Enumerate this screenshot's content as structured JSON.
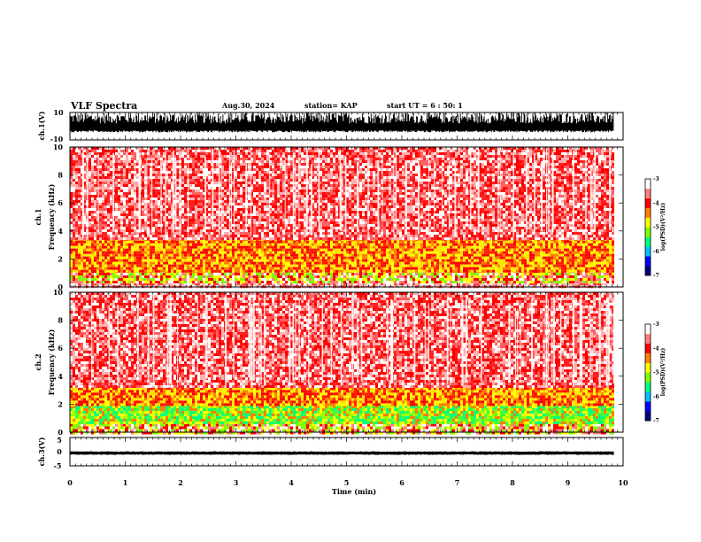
{
  "header": {
    "title": "VLF Spectra",
    "date": "Aug.30, 2024",
    "station": "station= KAP",
    "start": "start UT = 6 : 50: 1"
  },
  "chart_data": [
    {
      "type": "line",
      "ylabel": "ch.1(V)",
      "ylim": [
        -10,
        10
      ],
      "yticks": [
        "10",
        "-10"
      ],
      "xlim": [
        0,
        10
      ],
      "description": "waveform, dense noise mostly between -3 and 9 V"
    },
    {
      "type": "heatmap",
      "ylabel": "ch.1\nFrequency (kHz)",
      "xlim": [
        0,
        10
      ],
      "ylim": [
        0,
        10
      ],
      "yticks": [
        "0",
        "2",
        "4",
        "6",
        "8",
        "10"
      ],
      "x_data_end": 9.83,
      "colorbar": {
        "label": "log(PSD)(V²/Hz)",
        "range": [
          -7,
          -3
        ],
        "ticks": [
          "-3",
          "-4",
          "-5",
          "-6",
          "-7"
        ],
        "colors": [
          "#000080",
          "#0000ff",
          "#00c0ff",
          "#00ff80",
          "#80ff00",
          "#ffff00",
          "#ff8000",
          "#ff0000",
          "#ff8080",
          "#ffffff"
        ]
      },
      "bands": [
        {
          "from": 0.0,
          "to": 0.3,
          "level": "low"
        },
        {
          "from": 0.3,
          "to": 1.2,
          "level": "mixed"
        },
        {
          "from": 1.2,
          "to": 3.5,
          "level": "yellow-red"
        },
        {
          "from": 3.5,
          "to": 10.0,
          "level": "red-speckle"
        }
      ]
    },
    {
      "type": "heatmap",
      "ylabel": "ch.2\nFrequency (kHz)",
      "xlim": [
        0,
        10
      ],
      "ylim": [
        0,
        10
      ],
      "yticks": [
        "0",
        "2",
        "4",
        "6",
        "8",
        "10"
      ],
      "x_data_end": 9.83,
      "colorbar": {
        "label": "log(PSD)(V²/Hz)",
        "range": [
          -7,
          -3
        ],
        "ticks": [
          "-3",
          "-4",
          "-5",
          "-6",
          "-7"
        ],
        "colors": [
          "#000080",
          "#0000ff",
          "#00c0ff",
          "#00ff80",
          "#80ff00",
          "#ffff00",
          "#ff8000",
          "#ff0000",
          "#ff8080",
          "#ffffff"
        ]
      },
      "bands": [
        {
          "from": 0.0,
          "to": 0.6,
          "level": "mixed"
        },
        {
          "from": 0.6,
          "to": 1.9,
          "level": "green-yellow"
        },
        {
          "from": 1.9,
          "to": 3.2,
          "level": "yellow-red"
        },
        {
          "from": 3.2,
          "to": 10.0,
          "level": "red-speckle"
        }
      ]
    },
    {
      "type": "line",
      "ylabel": "ch.3(V)",
      "xlabel": "Time (min)",
      "ylim": [
        -5,
        5
      ],
      "yticks": [
        "5",
        "0",
        "-5"
      ],
      "xlim": [
        0,
        10
      ],
      "xticks": [
        "0",
        "1",
        "2",
        "3",
        "4",
        "5",
        "6",
        "7",
        "8",
        "9",
        "10"
      ],
      "description": "waveform, narrow band around -0.5 V",
      "band": [
        -0.9,
        -0.1
      ]
    }
  ]
}
